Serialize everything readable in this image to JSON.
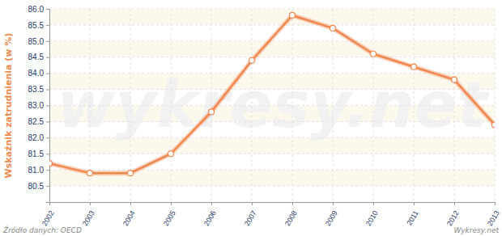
{
  "chart_data": {
    "type": "line",
    "y_label": "Wskaźnik zatrudnienia (w %)",
    "annotations": [
      "Źródło danych: OECD",
      "Wykresy.net",
      "wykresy.net"
    ],
    "x": [
      2002,
      2003,
      2004,
      2005,
      2006,
      2007,
      2008,
      2009,
      2010,
      2011,
      2012,
      2013
    ],
    "values": [
      81.2,
      80.9,
      80.9,
      81.5,
      82.8,
      84.4,
      85.8,
      85.4,
      84.6,
      84.2,
      83.8,
      82.4
    ],
    "color": "#f0874f",
    "marker": "circle",
    "xlim": [
      2002,
      2013
    ],
    "xticks": [
      2002,
      2003,
      2004,
      2005,
      2006,
      2007,
      2008,
      2009,
      2010,
      2011,
      2012,
      2013
    ],
    "ylim": [
      80,
      86
    ],
    "yticks": [
      80.5,
      81.0,
      81.5,
      82.0,
      82.5,
      83.0,
      83.5,
      84.0,
      84.5,
      85.0,
      85.5,
      86.0
    ],
    "grid": true
  }
}
